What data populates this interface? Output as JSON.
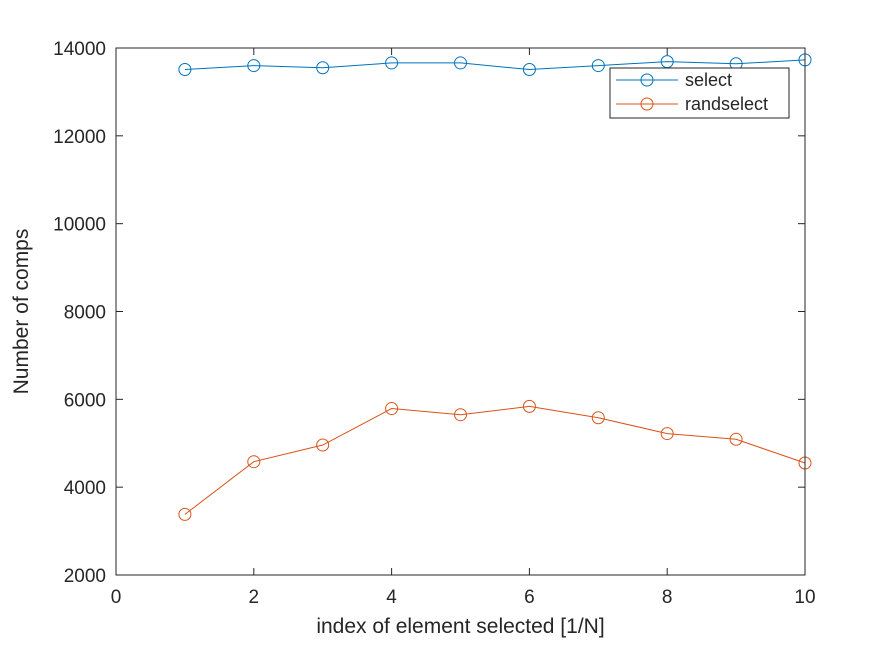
{
  "chart_data": {
    "type": "line",
    "title": "",
    "xlabel": "index of element selected [1/N]",
    "ylabel": "Number of comps",
    "xlim": [
      0,
      10
    ],
    "ylim": [
      2000,
      14000
    ],
    "xticks": [
      0,
      2,
      4,
      6,
      8,
      10
    ],
    "yticks": [
      2000,
      4000,
      6000,
      8000,
      10000,
      12000,
      14000
    ],
    "xtick_labels": [
      "0",
      "2",
      "4",
      "6",
      "8",
      "10"
    ],
    "ytick_labels": [
      "2000",
      "4000",
      "6000",
      "8000",
      "10000",
      "12000",
      "14000"
    ],
    "legend_position": "top-right",
    "grid": false,
    "x": [
      1,
      2,
      3,
      4,
      5,
      6,
      7,
      8,
      9,
      10
    ],
    "series": [
      {
        "name": "select",
        "color": "#0072bd",
        "marker": "circle",
        "values": [
          13510,
          13600,
          13550,
          13660,
          13660,
          13510,
          13600,
          13690,
          13640,
          13730
        ]
      },
      {
        "name": "randselect",
        "color": "#d95319",
        "marker": "circle",
        "values": [
          3380,
          4580,
          4960,
          5790,
          5650,
          5840,
          5580,
          5220,
          5090,
          4550
        ]
      }
    ]
  }
}
